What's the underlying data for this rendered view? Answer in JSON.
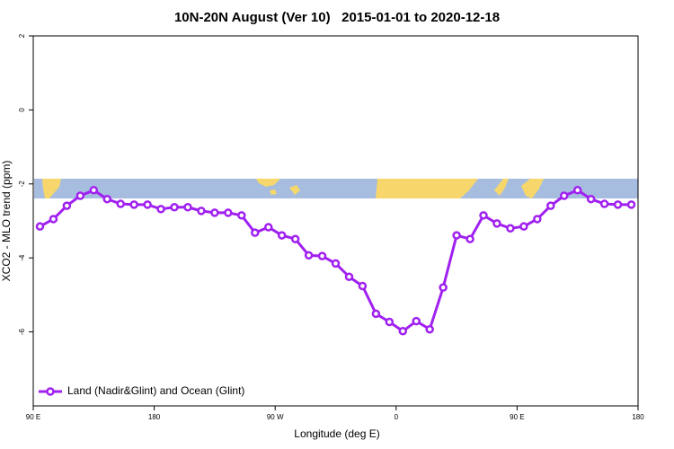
{
  "chart_data": {
    "type": "line",
    "title": "10N-20N August (Ver 10)   2015-01-01 to 2020-12-18",
    "xlabel": "Longitude (deg E)",
    "ylabel": "XCO2 - MLO trend (ppm)",
    "xlim": [
      90,
      540
    ],
    "xticks": [
      {
        "value": 90,
        "label": "90 E"
      },
      180,
      {
        "value": 270,
        "label": "90 W"
      },
      {
        "value": 360,
        "label": "0"
      },
      {
        "value": 450,
        "label": "90 E"
      },
      {
        "value": 540,
        "label": "180"
      }
    ],
    "ylim": [
      -8,
      2
    ],
    "yticks": [
      2,
      0,
      -2,
      -4,
      -6
    ],
    "legend": "bottomleft",
    "x": [
      95,
      105,
      115,
      125,
      135,
      145,
      155,
      165,
      175,
      185,
      195,
      205,
      215,
      225,
      235,
      245,
      255,
      265,
      275,
      285,
      295,
      305,
      315,
      325,
      335,
      345,
      355,
      365,
      375,
      385,
      395,
      405,
      415,
      425,
      435,
      445,
      455,
      465,
      475,
      485,
      495,
      505,
      515,
      525,
      535
    ],
    "series": [
      {
        "name": "Land (Nadir&Glint) and Ocean (Glint)",
        "color": "#a020f0",
        "values": [
          -3.15,
          -2.95,
          -2.59,
          -2.32,
          -2.17,
          -2.41,
          -2.54,
          -2.56,
          -2.56,
          -2.68,
          -2.63,
          -2.63,
          -2.73,
          -2.78,
          -2.78,
          -2.85,
          -3.32,
          -3.17,
          -3.39,
          -3.49,
          -3.93,
          -3.95,
          -4.15,
          -4.51,
          -4.76,
          -5.51,
          -5.73,
          -5.98,
          -5.71,
          -5.93,
          -4.8,
          -3.39,
          -3.49,
          -2.85,
          -3.07,
          -3.2,
          -3.15,
          -2.95,
          -2.59,
          -2.32,
          -2.17,
          -2.41,
          -2.54,
          -2.56,
          -2.56
        ]
      }
    ]
  }
}
